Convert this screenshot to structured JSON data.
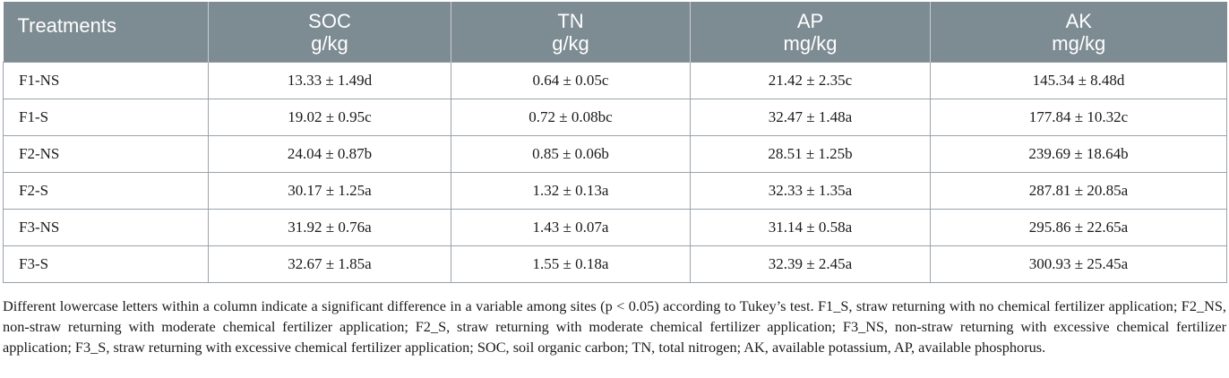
{
  "table": {
    "headers": [
      {
        "name": "Treatments",
        "unit": ""
      },
      {
        "name": "SOC",
        "unit": "g/kg"
      },
      {
        "name": "TN",
        "unit": "g/kg"
      },
      {
        "name": "AP",
        "unit": "mg/kg"
      },
      {
        "name": "AK",
        "unit": "mg/kg"
      }
    ],
    "rows": [
      [
        "F1-NS",
        "13.33 ± 1.49d",
        "0.64 ± 0.05c",
        "21.42 ± 2.35c",
        "145.34 ± 8.48d"
      ],
      [
        "F1-S",
        "19.02 ± 0.95c",
        "0.72 ± 0.08bc",
        "32.47 ± 1.48a",
        "177.84 ± 10.32c"
      ],
      [
        "F2-NS",
        "24.04 ± 0.87b",
        "0.85 ± 0.06b",
        "28.51 ± 1.25b",
        "239.69 ± 18.64b"
      ],
      [
        "F2-S",
        "30.17 ± 1.25a",
        "1.32 ± 0.13a",
        "32.33 ± 1.35a",
        "287.81 ± 20.85a"
      ],
      [
        "F3-NS",
        "31.92 ± 0.76a",
        "1.43 ± 0.07a",
        "31.14 ± 0.58a",
        "295.86 ± 22.65a"
      ],
      [
        "F3-S",
        "32.67 ± 1.85a",
        "1.55 ± 0.18a",
        "32.39 ± 2.45a",
        "300.93 ± 25.45a"
      ]
    ]
  },
  "footnote": "Different lowercase letters within a column indicate a significant difference in a variable among sites (p < 0.05) according to Tukey’s test. F1_S, straw returning with no chemical fertilizer application; F2_NS, non-straw returning with moderate chemical fertilizer application; F2_S, straw returning with moderate chemical fertilizer application; F3_NS, non-straw returning with excessive chemical fertilizer application; F3_S, straw returning with excessive chemical fertilizer application; SOC, soil organic carbon; TN, total nitrogen; AK, available potassium, AP, available phosphorus."
}
